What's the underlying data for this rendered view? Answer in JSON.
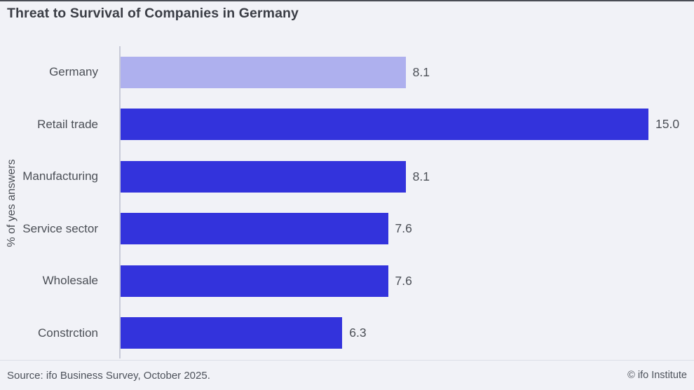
{
  "chart_data": {
    "type": "bar",
    "orientation": "horizontal",
    "title": "Threat to Survival of Companies in Germany",
    "xlabel": "",
    "ylabel": "% of yes answers",
    "categories": [
      "Germany",
      "Retail trade",
      "Manufacturing",
      "Service sector",
      "Wholesale",
      "Constrction"
    ],
    "values": [
      8.1,
      15.0,
      8.1,
      7.6,
      7.6,
      6.3
    ],
    "value_labels": [
      "8.1",
      "15.0",
      "8.1",
      "7.6",
      "7.6",
      "6.3"
    ],
    "xmax": 15,
    "grid": false,
    "legend": "none",
    "bar_color": "#3333dc",
    "highlight_color": "#aeb0ee",
    "axis_line_color": "#c9cbd8"
  },
  "footer": {
    "source": "Source: ifo Business Survey, October 2025.",
    "copyright": "© ifo Institute"
  }
}
